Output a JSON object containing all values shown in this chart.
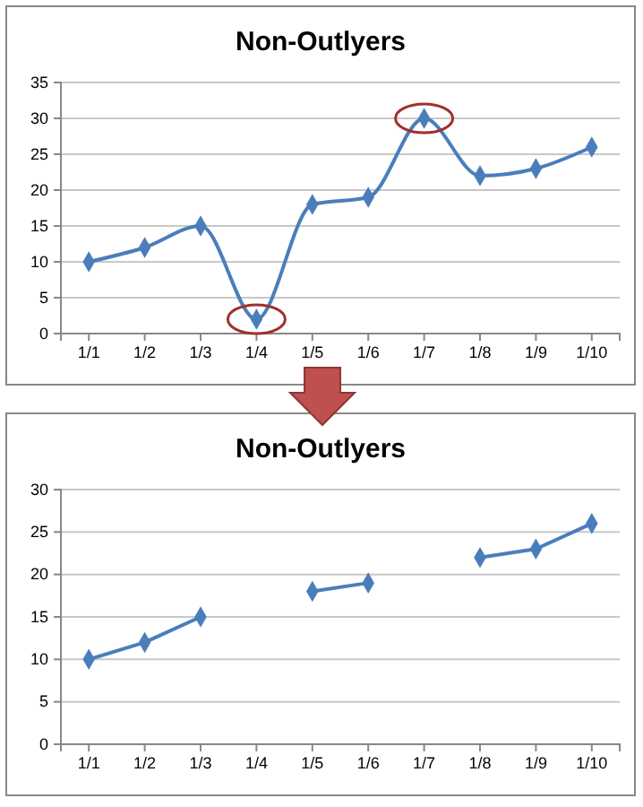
{
  "chart_data": [
    {
      "type": "line",
      "title": "Non-Outlyers",
      "categories": [
        "1/1",
        "1/2",
        "1/3",
        "1/4",
        "1/5",
        "1/6",
        "1/7",
        "1/8",
        "1/9",
        "1/10"
      ],
      "series": [
        {
          "color": "#4a7ebb",
          "values": [
            10,
            12,
            15,
            2,
            18,
            19,
            30,
            22,
            23,
            26
          ]
        }
      ],
      "ylim": [
        0,
        35
      ],
      "yticks": [
        0,
        5,
        10,
        15,
        20,
        25,
        30,
        35
      ],
      "grid": "y",
      "marker": "diamond",
      "line_style": "solid"
    },
    {
      "type": "line",
      "title": "Non-Outlyers",
      "categories": [
        "1/1",
        "1/2",
        "1/3",
        "1/4",
        "1/5",
        "1/6",
        "1/7",
        "1/8",
        "1/9",
        "1/10"
      ],
      "series": [
        {
          "color": "#4a7ebb",
          "values": [
            10,
            12,
            15,
            null,
            18,
            19,
            null,
            22,
            23,
            26
          ]
        }
      ],
      "ylim": [
        0,
        30
      ],
      "yticks": [
        0,
        5,
        10,
        15,
        20,
        25,
        30
      ],
      "grid": "y",
      "marker": "diamond",
      "line_style": "solid"
    }
  ]
}
